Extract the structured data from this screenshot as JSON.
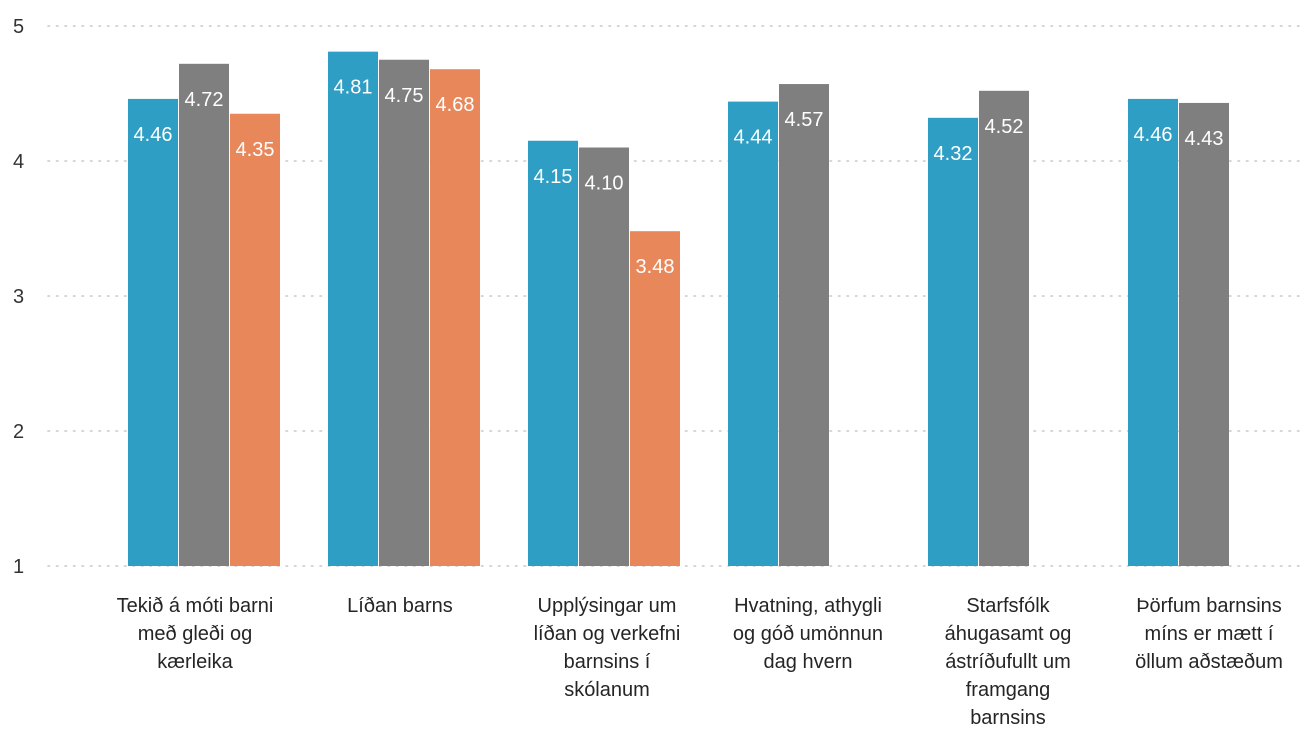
{
  "chart_data": {
    "type": "bar",
    "title": "",
    "xlabel": "",
    "ylabel": "",
    "ylim": [
      1,
      5
    ],
    "yticks": [
      1,
      2,
      3,
      4,
      5
    ],
    "grid": true,
    "legend": "none",
    "categories": [
      "Tekið á móti barni með gleði og kærleika",
      "Líðan barns",
      "Upplýsingar um líðan og verkefni barnsins í skólanum",
      "Hvatning, athygli og góð umönnun dag hvern",
      "Starfsfólk áhugasamt og ástríðufullt um framgang barnsins",
      "Þörfum barnsins míns er mætt í öllum aðstæðum"
    ],
    "category_lines": [
      [
        "Tekið á móti barni",
        "með gleði og",
        "kærleika"
      ],
      [
        "Líðan barns"
      ],
      [
        "Upplýsingar um",
        "líðan og verkefni",
        "barnsins í",
        "skólanum"
      ],
      [
        "Hvatning, athygli",
        "og góð umönnun",
        "dag hvern"
      ],
      [
        "Starfsfólk",
        "áhugasamt og",
        "ástríðufullt um",
        "framgang",
        "barnsins"
      ],
      [
        "Þörfum barnsins",
        "míns er mætt í",
        "öllum aðstæðum"
      ]
    ],
    "series": [
      {
        "color": "#2e9ec4",
        "values": [
          4.46,
          4.81,
          4.15,
          4.44,
          4.32,
          4.46
        ],
        "labels": [
          "4.46",
          "4.81",
          "4.15",
          "4.44",
          "4.32",
          "4.46"
        ]
      },
      {
        "color": "#7f7f7f",
        "values": [
          4.72,
          4.75,
          4.1,
          4.57,
          4.52,
          4.43
        ],
        "labels": [
          "4.72",
          "4.75",
          "4.10",
          "4.57",
          "4.52",
          "4.43"
        ]
      },
      {
        "color": "#e8875a",
        "values": [
          4.35,
          4.68,
          3.48,
          null,
          null,
          null
        ],
        "labels": [
          "4.35",
          "4.68",
          "3.48",
          "",
          "",
          ""
        ]
      }
    ]
  }
}
